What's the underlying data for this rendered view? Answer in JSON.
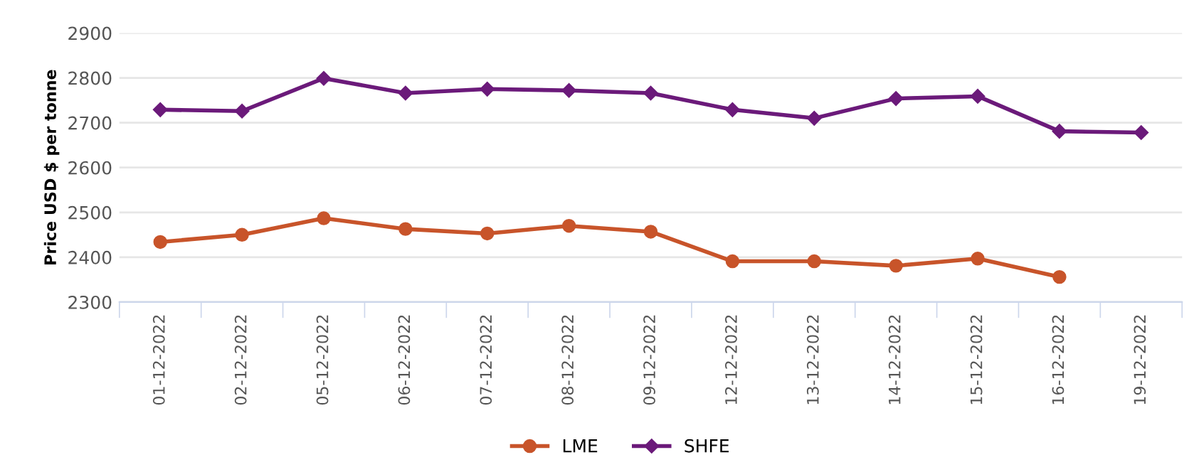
{
  "chart_data": {
    "type": "line",
    "ylabel": "Price USD $ per tonne",
    "categories": [
      "01-12-2022",
      "02-12-2022",
      "05-12-2022",
      "06-12-2022",
      "07-12-2022",
      "08-12-2022",
      "09-12-2022",
      "12-12-2022",
      "13-12-2022",
      "14-12-2022",
      "15-12-2022",
      "16-12-2022",
      "19-12-2022"
    ],
    "series": [
      {
        "name": "LME",
        "color": "#c8542a",
        "marker": "circle",
        "values": [
          2434,
          2450,
          2487,
          2463,
          2453,
          2470,
          2457,
          2391,
          2391,
          2381,
          2397,
          2356,
          null
        ]
      },
      {
        "name": "SHFE",
        "color": "#6b1a7a",
        "marker": "diamond",
        "values": [
          2729,
          2726,
          2799,
          2766,
          2775,
          2772,
          2766,
          2729,
          2710,
          2754,
          2759,
          2681,
          2678
        ]
      }
    ],
    "ylim": [
      2300,
      2900
    ],
    "yticks": [
      2300,
      2400,
      2500,
      2600,
      2700,
      2800,
      2900
    ],
    "grid": "y",
    "legend": "bottom",
    "line_style": "solid"
  }
}
